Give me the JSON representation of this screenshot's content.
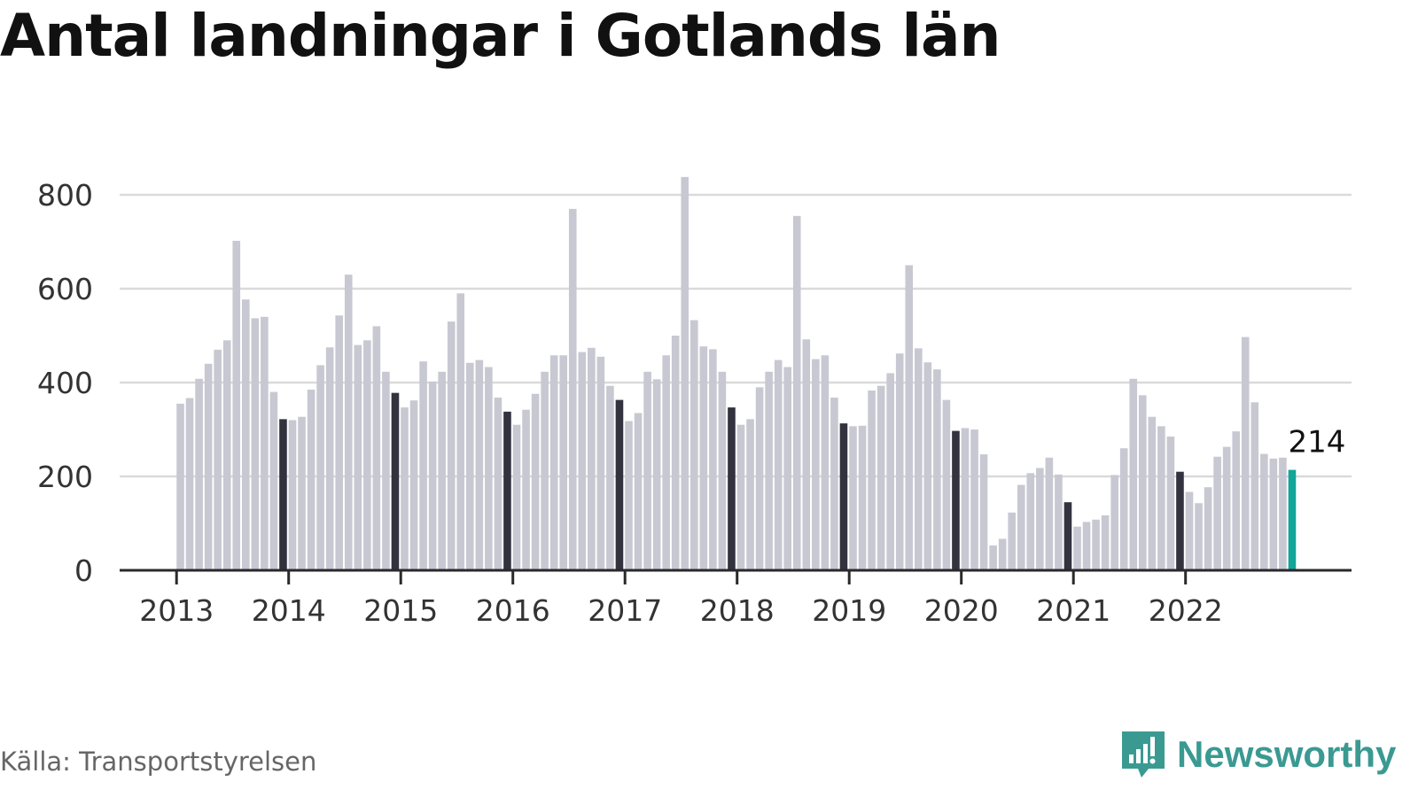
{
  "title": "Antal landningar i Gotlands län",
  "source": "Källa: Transportstyrelsen",
  "brand": {
    "name": "Newsworthy",
    "icon": "newsworthy-logo-icon",
    "color": "#3a9a92"
  },
  "colors": {
    "bar": "#c8c8d2",
    "december": "#33333f",
    "latest": "#12a598",
    "grid": "#dadada",
    "axis": "#2a2a2a"
  },
  "chart_data": {
    "type": "bar",
    "title": "Antal landningar i Gotlands län",
    "xlabel": "",
    "ylabel": "",
    "ylim": [
      0,
      850
    ],
    "yticks": [
      0,
      200,
      400,
      600,
      800
    ],
    "grid": true,
    "start": "2013-01",
    "year_labels": [
      "2013",
      "2014",
      "2015",
      "2016",
      "2017",
      "2018",
      "2019",
      "2020",
      "2021",
      "2022"
    ],
    "categories": [
      "2013-01",
      "2013-02",
      "2013-03",
      "2013-04",
      "2013-05",
      "2013-06",
      "2013-07",
      "2013-08",
      "2013-09",
      "2013-10",
      "2013-11",
      "2013-12",
      "2014-01",
      "2014-02",
      "2014-03",
      "2014-04",
      "2014-05",
      "2014-06",
      "2014-07",
      "2014-08",
      "2014-09",
      "2014-10",
      "2014-11",
      "2014-12",
      "2015-01",
      "2015-02",
      "2015-03",
      "2015-04",
      "2015-05",
      "2015-06",
      "2015-07",
      "2015-08",
      "2015-09",
      "2015-10",
      "2015-11",
      "2015-12",
      "2016-01",
      "2016-02",
      "2016-03",
      "2016-04",
      "2016-05",
      "2016-06",
      "2016-07",
      "2016-08",
      "2016-09",
      "2016-10",
      "2016-11",
      "2016-12",
      "2017-01",
      "2017-02",
      "2017-03",
      "2017-04",
      "2017-05",
      "2017-06",
      "2017-07",
      "2017-08",
      "2017-09",
      "2017-10",
      "2017-11",
      "2017-12",
      "2018-01",
      "2018-02",
      "2018-03",
      "2018-04",
      "2018-05",
      "2018-06",
      "2018-07",
      "2018-08",
      "2018-09",
      "2018-10",
      "2018-11",
      "2018-12",
      "2019-01",
      "2019-02",
      "2019-03",
      "2019-04",
      "2019-05",
      "2019-06",
      "2019-07",
      "2019-08",
      "2019-09",
      "2019-10",
      "2019-11",
      "2019-12",
      "2020-01",
      "2020-02",
      "2020-03",
      "2020-04",
      "2020-05",
      "2020-06",
      "2020-07",
      "2020-08",
      "2020-09",
      "2020-10",
      "2020-11",
      "2020-12",
      "2021-01",
      "2021-02",
      "2021-03",
      "2021-04",
      "2021-05",
      "2021-06",
      "2021-07",
      "2021-08",
      "2021-09",
      "2021-10",
      "2021-11",
      "2021-12",
      "2022-01",
      "2022-02",
      "2022-03",
      "2022-04",
      "2022-05",
      "2022-06",
      "2022-07",
      "2022-08",
      "2022-09",
      "2022-10",
      "2022-11",
      "2022-12"
    ],
    "values": [
      355,
      367,
      408,
      440,
      470,
      490,
      702,
      577,
      537,
      540,
      380,
      322,
      320,
      327,
      385,
      437,
      475,
      543,
      630,
      480,
      490,
      520,
      423,
      378,
      347,
      362,
      445,
      402,
      423,
      530,
      590,
      442,
      448,
      433,
      368,
      338,
      310,
      342,
      376,
      423,
      458,
      458,
      770,
      465,
      474,
      455,
      393,
      363,
      318,
      335,
      423,
      407,
      458,
      500,
      838,
      533,
      477,
      471,
      423,
      347,
      310,
      322,
      390,
      423,
      448,
      433,
      755,
      492,
      450,
      458,
      368,
      313,
      307,
      308,
      383,
      393,
      420,
      462,
      650,
      473,
      443,
      428,
      363,
      297,
      303,
      300,
      247,
      53,
      67,
      123,
      182,
      207,
      218,
      240,
      204,
      145,
      93,
      103,
      108,
      117,
      203,
      260,
      408,
      373,
      327,
      307,
      285,
      210,
      167,
      143,
      177,
      242,
      263,
      296,
      497,
      358,
      248,
      238,
      240,
      214
    ],
    "highlight": {
      "type": "december",
      "latest_label": "214"
    }
  }
}
